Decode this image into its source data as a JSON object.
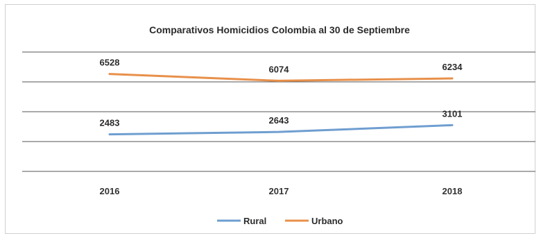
{
  "chart_data": {
    "type": "line",
    "title": "Comparativos Homicidios Colombia al 30 de Septiembre",
    "categories": [
      "2016",
      "2017",
      "2018"
    ],
    "series": [
      {
        "name": "Rural",
        "values": [
          2483,
          2643,
          3101
        ],
        "color": "#6f9ed0"
      },
      {
        "name": "Urbano",
        "values": [
          6528,
          6074,
          6234
        ],
        "color": "#e8904a"
      }
    ],
    "ylim": [
      0,
      8000
    ],
    "grid": true,
    "legend_position": "bottom",
    "gridline_color": "#555555"
  }
}
